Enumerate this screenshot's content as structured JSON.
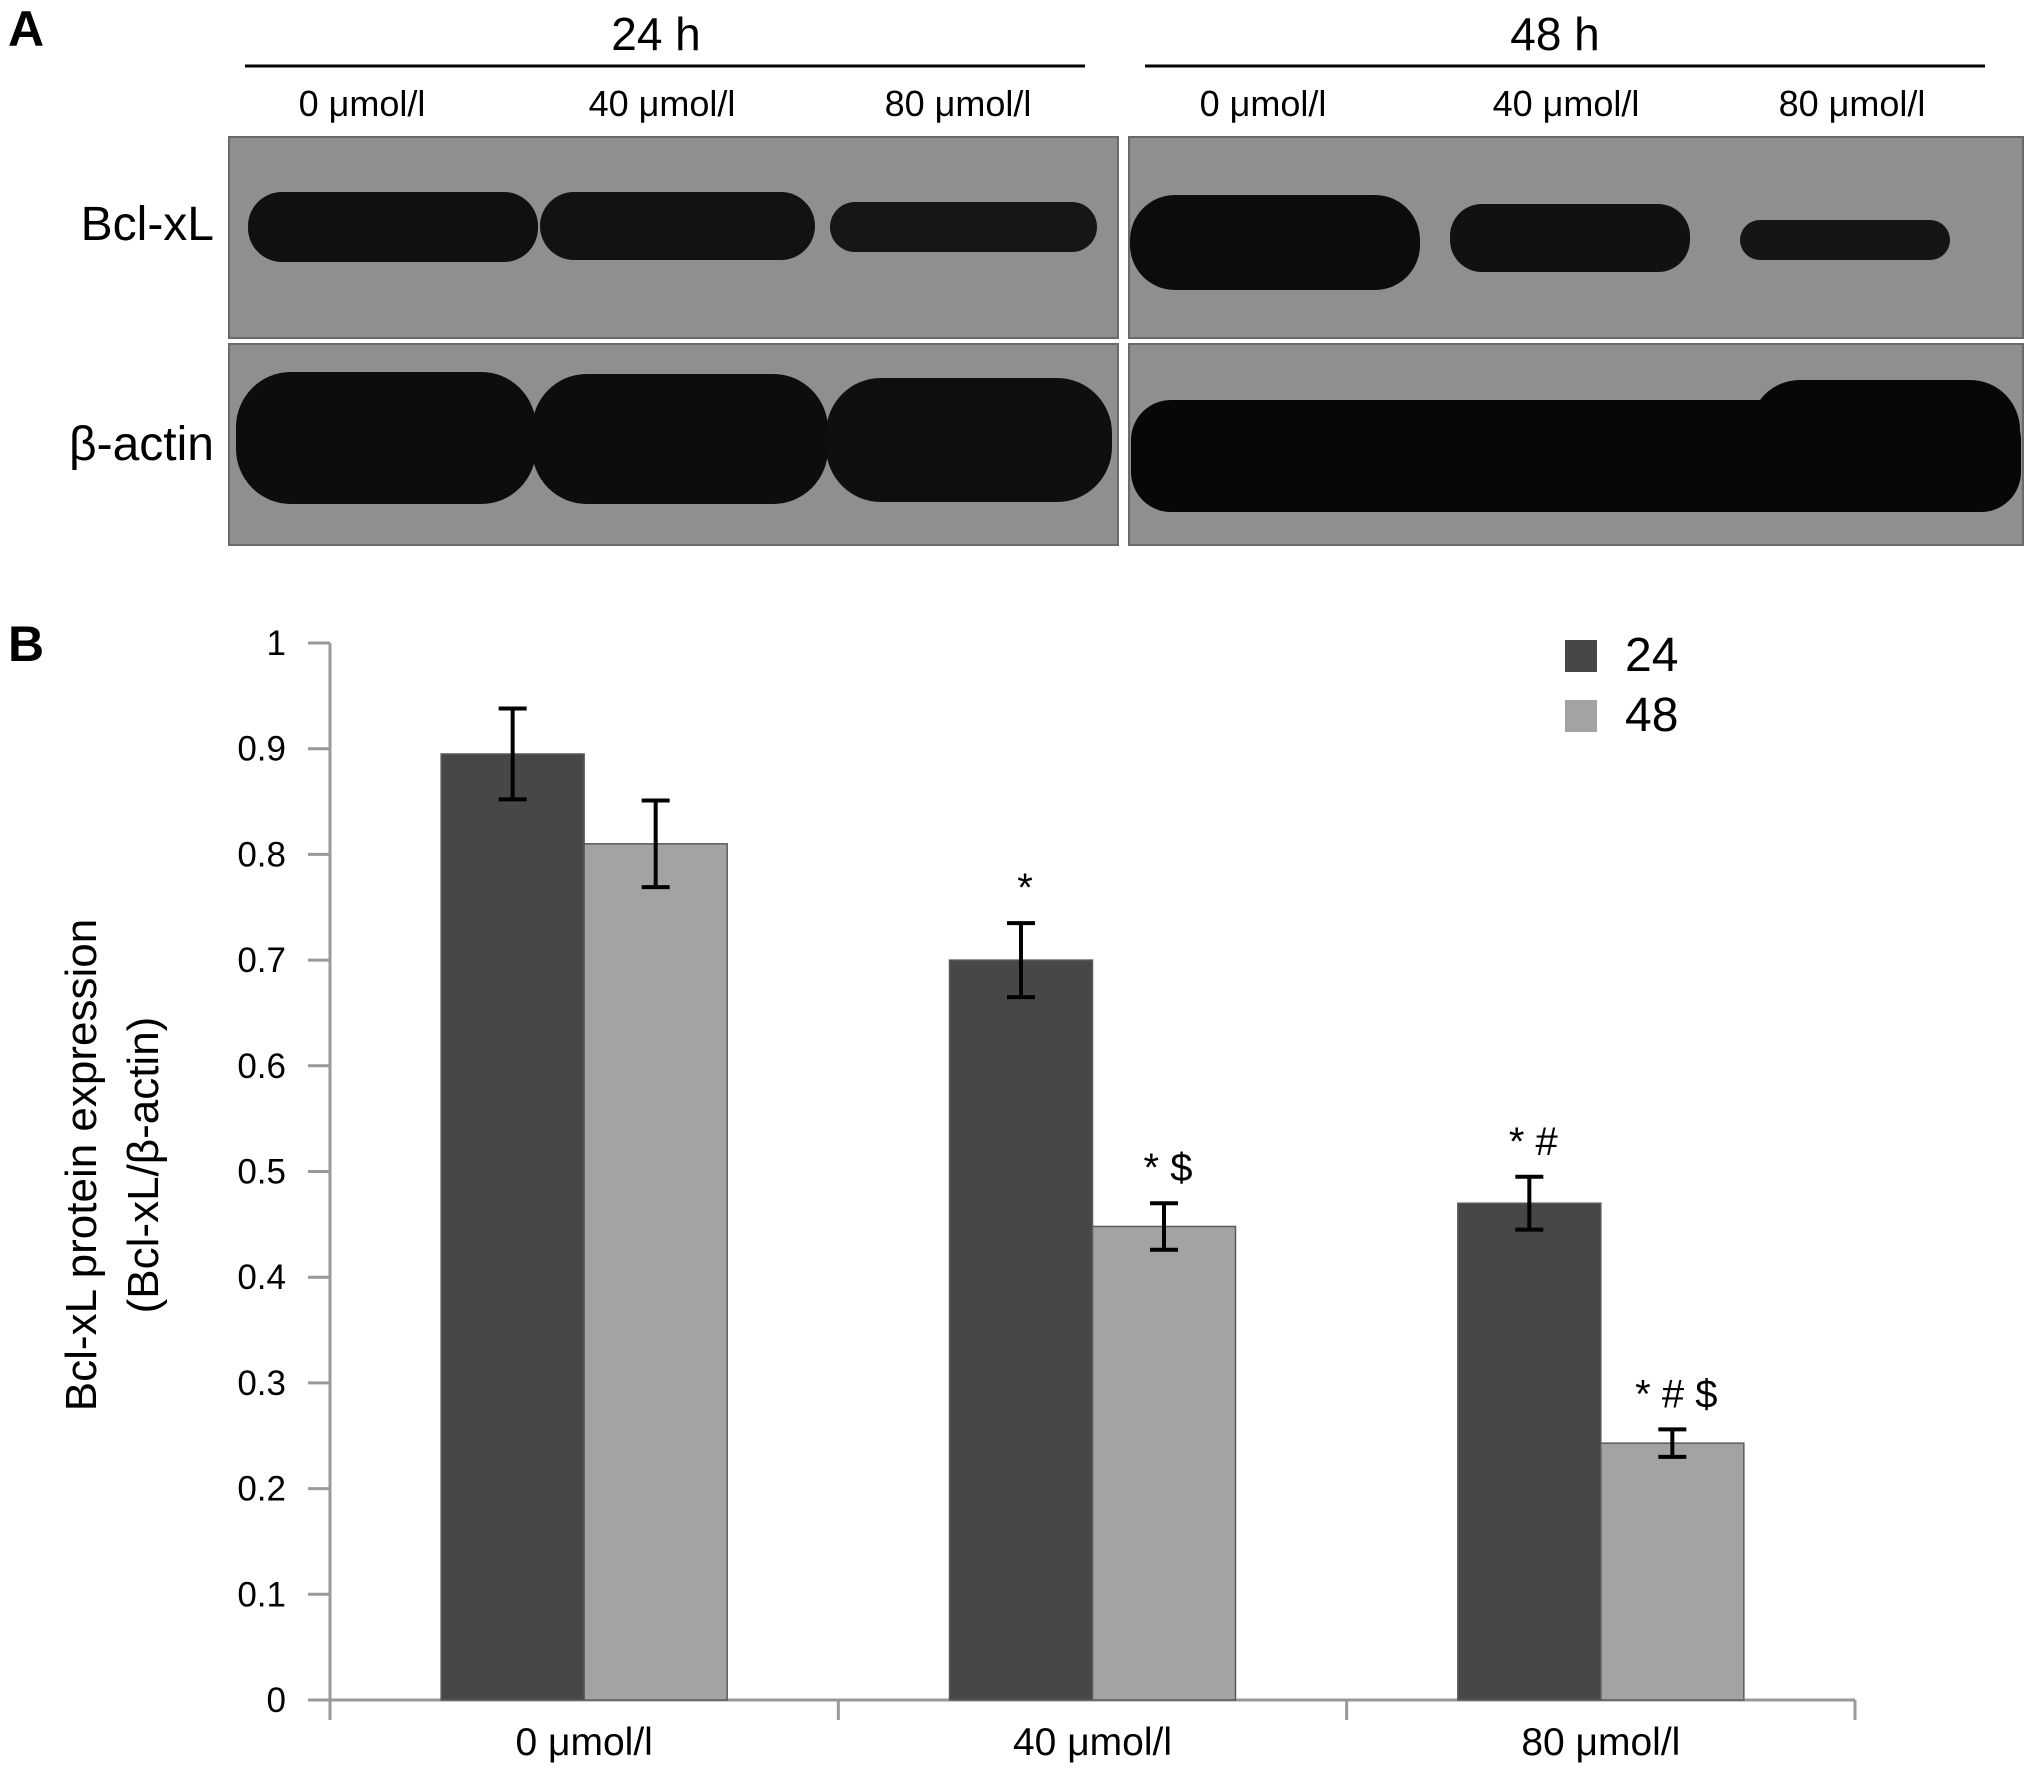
{
  "panels": {
    "a_letter": "A",
    "b_letter": "B"
  },
  "blot": {
    "time_groups": [
      {
        "label": "24 h",
        "lanes": [
          "0 μmol/l",
          "40 μmol/l",
          "80 μmol/l"
        ]
      },
      {
        "label": "48 h",
        "lanes": [
          "0 μmol/l",
          "40 μmol/l",
          "80 μmol/l"
        ]
      }
    ],
    "rows": [
      {
        "label": "Bcl-xL",
        "band_intensity": [
          [
            1.0,
            0.95,
            0.7
          ],
          [
            1.0,
            0.85,
            0.65
          ]
        ]
      },
      {
        "label": "β-actin",
        "band_intensity": [
          [
            1.0,
            1.0,
            1.0
          ],
          [
            1.0,
            1.0,
            1.0
          ]
        ]
      }
    ],
    "colors": {
      "membrane": "#8f8f8f",
      "band": "#101010"
    }
  },
  "chart_data": {
    "type": "bar",
    "categories": [
      "0 μmol/l",
      "40 μmol/l",
      "80 μmol/l"
    ],
    "series": [
      {
        "name": "24",
        "color": "#474747",
        "values": [
          0.895,
          0.7,
          0.47
        ],
        "errors": [
          0.043,
          0.035,
          0.025
        ],
        "annotations": [
          "",
          "*",
          "* #"
        ]
      },
      {
        "name": "48",
        "color": "#a3a3a3",
        "values": [
          0.81,
          0.448,
          0.243
        ],
        "errors": [
          0.041,
          0.022,
          0.013
        ],
        "annotations": [
          "",
          "* $",
          "* # $"
        ]
      }
    ],
    "ylabel_lines": [
      "Bcl-xL protein expression",
      "(Bcl-xL/β-actin)"
    ],
    "ylim": [
      0,
      1
    ],
    "yticks": [
      {
        "value": 0,
        "label": "0"
      },
      {
        "value": 0.1,
        "label": "0.1"
      },
      {
        "value": 0.2,
        "label": "0.2"
      },
      {
        "value": 0.3,
        "label": "0.3"
      },
      {
        "value": 0.4,
        "label": "0.4"
      },
      {
        "value": 0.5,
        "label": "0.5"
      },
      {
        "value": 0.6,
        "label": "0.6"
      },
      {
        "value": 0.7,
        "label": "0.7"
      },
      {
        "value": 0.8,
        "label": "0.8"
      },
      {
        "value": 0.9,
        "label": "0.9"
      },
      {
        "value": 1,
        "label": "1"
      }
    ],
    "grid": false,
    "legend_position": "top-right",
    "axis_color": "#999999"
  }
}
